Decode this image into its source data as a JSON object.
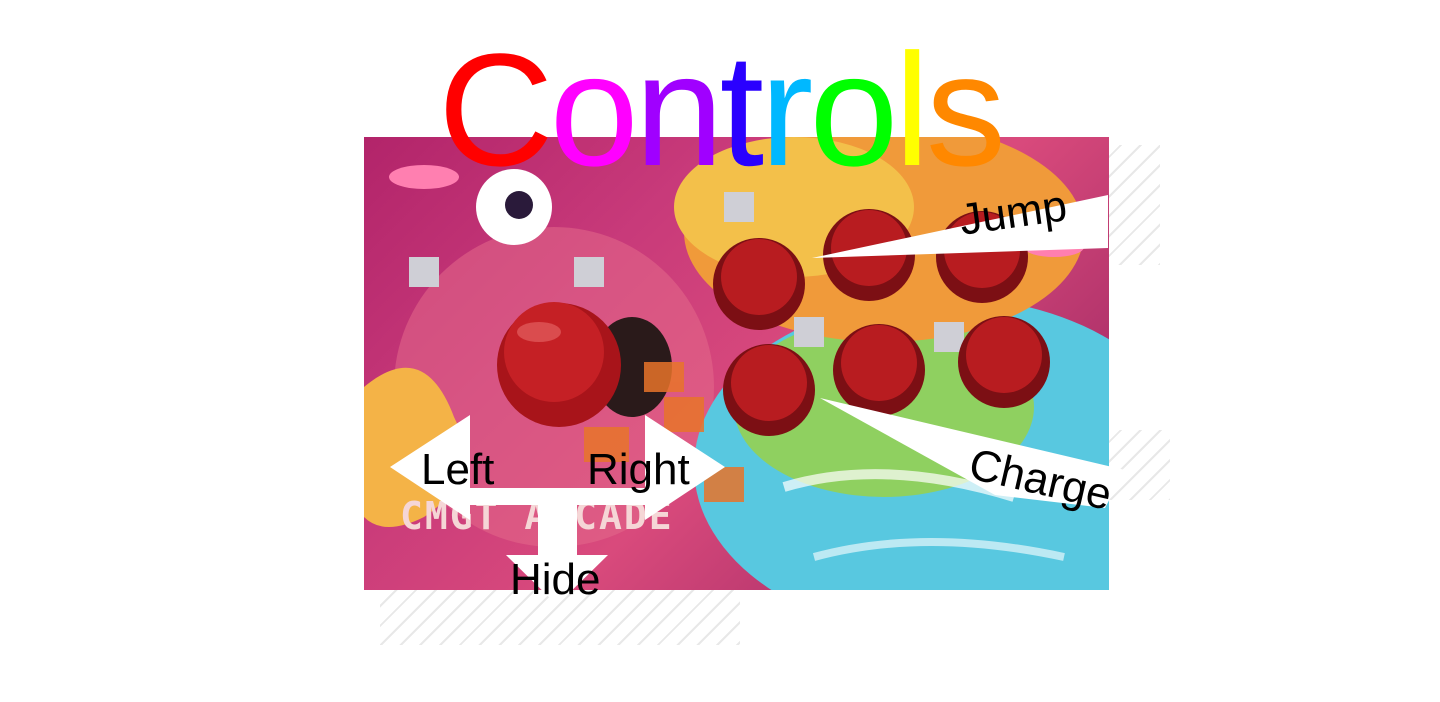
{
  "title": {
    "letters": [
      {
        "char": "C",
        "color": "#ff0000"
      },
      {
        "char": "o",
        "color": "#ff00ff"
      },
      {
        "char": "n",
        "color": "#a000ff"
      },
      {
        "char": "t",
        "color": "#2a00ff"
      },
      {
        "char": "r",
        "color": "#00b8ff"
      },
      {
        "char": "o",
        "color": "#00ff00"
      },
      {
        "char": "l",
        "color": "#ffff00"
      },
      {
        "char": "s",
        "color": "#ff8800"
      }
    ]
  },
  "panel": {
    "printed_text": "CMGT ARCADE"
  },
  "labels": {
    "left": "Left",
    "right": "Right",
    "hide": "Hide",
    "jump": "Jump",
    "charge": "Charge"
  },
  "colors": {
    "button_red": "#b81c20",
    "arrow_fill": "#ffffff"
  }
}
